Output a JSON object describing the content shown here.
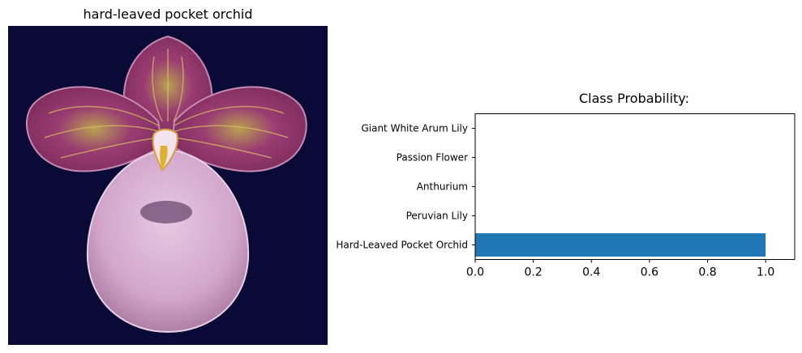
{
  "image_panel": {
    "title": "hard-leaved pocket orchid",
    "background_color": "#0a0a36",
    "petal_color": "#9a3c72",
    "lip_color": "#dcb6d6"
  },
  "chart_data": {
    "type": "bar",
    "orientation": "horizontal",
    "title": "Class Probability:",
    "categories": [
      "Hard-Leaved Pocket Orchid",
      "Peruvian Lily",
      "Anthurium",
      "Passion Flower",
      "Giant White Arum Lily"
    ],
    "values": [
      1.0,
      0.0,
      0.0,
      0.0,
      0.0
    ],
    "xlim": [
      0,
      1.1
    ],
    "xticks": [
      "0.0",
      "0.2",
      "0.4",
      "0.6",
      "0.8",
      "1.0"
    ],
    "xlabel": "",
    "ylabel": "",
    "grid": false,
    "bar_color": "#1f77b4"
  }
}
